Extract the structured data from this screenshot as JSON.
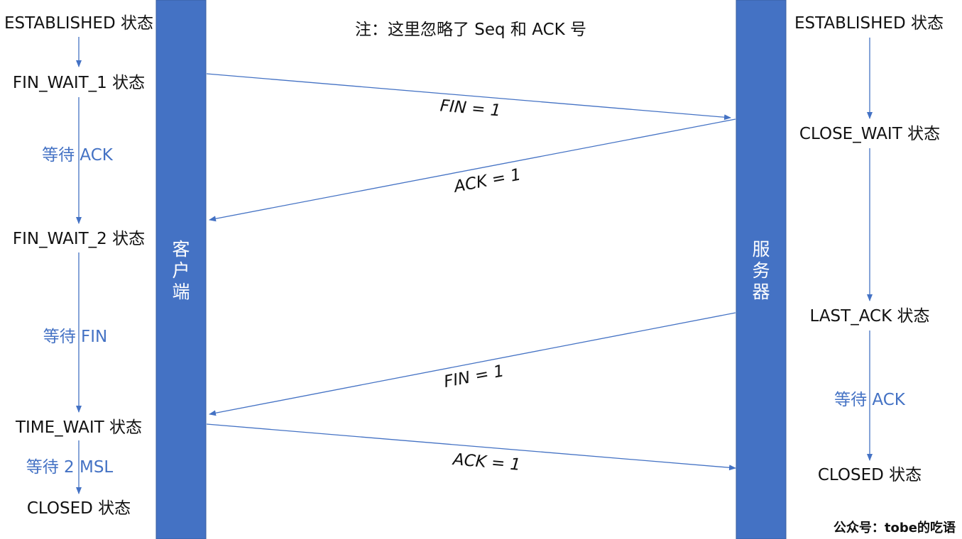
{
  "note": "注：这里忽略了 Seq 和 ACK 号",
  "colors": {
    "bar": "#4472c4",
    "wait_text": "#4472c4",
    "arrow": "#4472c4",
    "text": "#111111"
  },
  "client": {
    "label_chars": [
      "客",
      "户",
      "端"
    ],
    "states": [
      "ESTABLISHED 状态",
      "FIN_WAIT_1 状态",
      "FIN_WAIT_2 状态",
      "TIME_WAIT 状态",
      "CLOSED 状态"
    ],
    "waits": [
      "等待 ACK",
      "等待 FIN",
      "等待 2 MSL"
    ]
  },
  "server": {
    "label_chars": [
      "服",
      "务",
      "器"
    ],
    "states": [
      "ESTABLISHED 状态",
      "CLOSE_WAIT 状态",
      "LAST_ACK 状态",
      "CLOSED 状态"
    ],
    "waits": [
      "等待 ACK"
    ]
  },
  "messages": [
    "FIN = 1",
    "ACK = 1",
    "FIN = 1",
    "ACK = 1"
  ],
  "brand": "公众号：tobe的吃语"
}
